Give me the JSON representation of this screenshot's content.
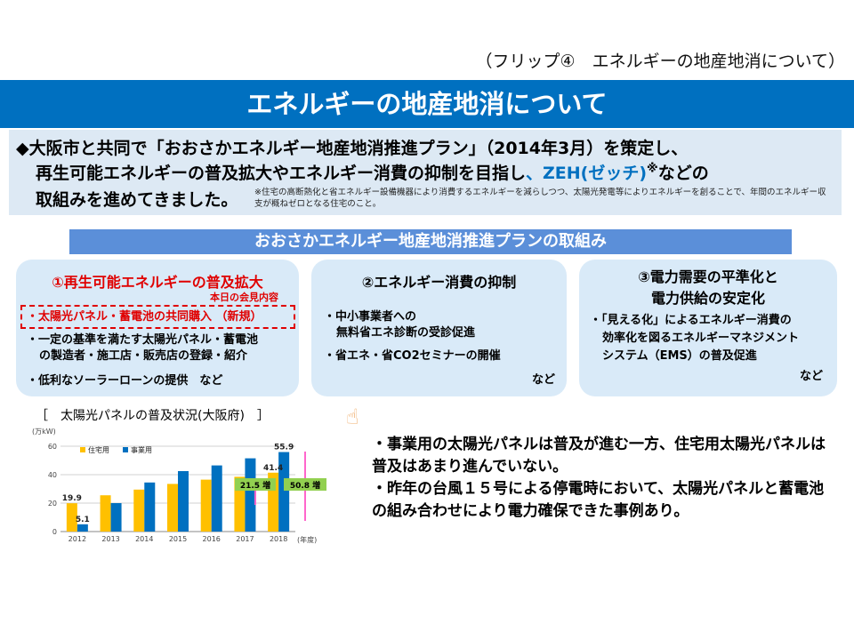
{
  "flip_label": "（フリップ④　エネルギーの地産地消について）",
  "page_title": "エネルギーの地産地消について",
  "intro": {
    "line1": "◆大阪市と共同で「おおさかエネルギー地産地消推進プラン」（2014年3月）を策定し、",
    "line2_a": "再生可能エネルギーの普及拡大やエネルギー消費の抑制を目指し",
    "line2_b": "、ZEH(ゼッチ)",
    "line2_sup": "※",
    "line2_c": "などの",
    "line3": "取組みを進めてきました。",
    "note": "※住宅の高断熱化と省エネルギー設備機器により消費するエネルギーを減らしつつ、太陽光発電等によりエネルギーを創ることで、年間のエネルギー収支が概ねゼロとなる住宅のこと。"
  },
  "subheader": "おおさかエネルギー地産地消推進プランの取組み",
  "box1": {
    "title": "①再生可能エネルギーの普及拡大",
    "today_label": "本日の会見内容",
    "item1": "・太陽光パネル・蓄電池の共同購入 （新規）",
    "item2a": "・一定の基準を満たす太陽光パネル・蓄電池",
    "item2b": "の製造者・施工店・販売店の登録・紹介",
    "item3": "・低利なソーラーローンの提供　など"
  },
  "box2": {
    "title": "②エネルギー消費の抑制",
    "item1a": "・中小事業者への",
    "item1b": "無料省エネ診断の受診促進",
    "item2": "・省エネ・省CO2セミナーの開催",
    "etc": "など"
  },
  "box3": {
    "title1": "③電力需要の平準化と",
    "title2": "電力供給の安定化",
    "item1a": "・「見える化」によるエネルギー消費の",
    "item1b": "効率化を図るエネルギーマネジメント",
    "item1c": "システム（EMS）の普及促進",
    "etc": "など"
  },
  "chart_caption": "［　太陽光パネルの普及状況(大阪府)　］",
  "hand_icon": "pointing-hand-icon",
  "bullets": {
    "b1": "・事業用の太陽光パネルは普及が進む一方、住宅用太陽光パネルは普及はあまり進んでいない。",
    "b2": "・昨年の台風１５号による停電時において、太陽光パネルと蓄電池の組み合わせにより電力確保できた事例あり。"
  },
  "colors": {
    "title_bar": "#0070c0",
    "residential": "#ffc000",
    "business": "#0070c0",
    "increase_box": "#92d050",
    "arrow": "#ff66cc",
    "accent_red": "#e00000"
  },
  "chart_data": {
    "type": "bar",
    "title": "太陽光パネルの普及状況(大阪府)",
    "ylabel": "(万kW)",
    "xlabel": "(年度)",
    "categories": [
      "2012",
      "2013",
      "2014",
      "2015",
      "2016",
      "2017",
      "2018"
    ],
    "series": [
      {
        "name": "住宅用",
        "values": [
          19.9,
          25.5,
          29.5,
          33.5,
          36.5,
          38.5,
          41.4
        ]
      },
      {
        "name": "事業用",
        "values": [
          5.1,
          20.0,
          34.5,
          42.5,
          46.5,
          51.5,
          55.9
        ]
      }
    ],
    "data_labels": {
      "2012_住宅用": "19.9",
      "2012_事業用": "5.1",
      "2018_住宅用": "41.4",
      "2018_事業用": "55.9"
    },
    "annotations": [
      "21.5 増",
      "50.8 増"
    ],
    "ylim": [
      0,
      60
    ],
    "yticks": [
      "0",
      "20",
      "40",
      "60"
    ],
    "grid": true,
    "legend": "top-left"
  }
}
